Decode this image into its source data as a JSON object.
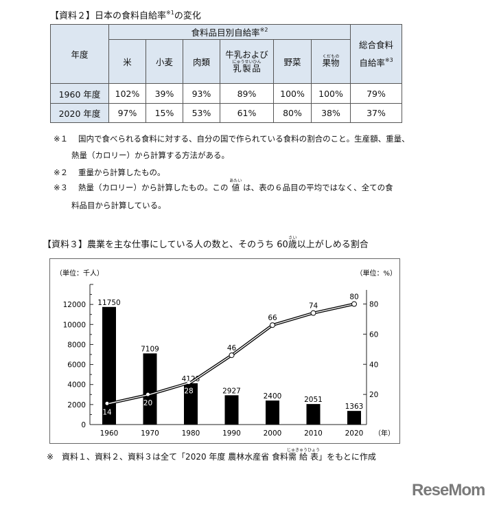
{
  "doc2": {
    "title": "【資料２】日本の食料自給率",
    "title_sup": "※1",
    "title_tail": "の変化"
  },
  "table": {
    "year_header": "年度",
    "group_header": "食料品目別自給率",
    "group_sup": "※2",
    "total_header_1": "総合食料",
    "total_header_2": "自給率",
    "total_sup": "※3",
    "items": [
      {
        "label": "米"
      },
      {
        "label": "小麦"
      },
      {
        "label": "肉類"
      },
      {
        "label": "牛乳および",
        "label2": "乳製品",
        "ruby": "にゅうせいひん"
      },
      {
        "label": "野菜"
      },
      {
        "label": "果物",
        "ruby": "くだもの"
      }
    ],
    "rows": [
      {
        "year": "1960 年度",
        "values": [
          "102%",
          "39%",
          "93%",
          "89%",
          "100%",
          "100%",
          "79%"
        ]
      },
      {
        "year": "2020 年度",
        "values": [
          "97%",
          "15%",
          "53%",
          "61%",
          "80%",
          "38%",
          "37%"
        ]
      }
    ]
  },
  "notes": [
    {
      "mark": "※１",
      "text": "国内で食べられる食料に対する、自分の国で作られている食料の割合のこと。生産額、重量、",
      "text2": "熱量（カロリー）から計算する方法がある。"
    },
    {
      "mark": "※２",
      "text": "重量から計算したもの。"
    },
    {
      "mark": "※３",
      "text_a": "熱量（カロリー）から計算したもの。この",
      "ruby_base": "値",
      "ruby": "あたい",
      "text_b": "は、表の６品目の平均ではなく、全ての食",
      "text2": "料品目から計算している。"
    }
  ],
  "doc3": {
    "title_a": "【資料３】農業を主な仕事にしている人の数と、そのうち 60",
    "ruby_base": "歳",
    "ruby": "さい",
    "title_b": "以上がしめる割合"
  },
  "chart_data": {
    "type": "bar+line",
    "categories": [
      "1960",
      "1970",
      "1980",
      "1990",
      "2000",
      "2010",
      "2020"
    ],
    "left_unit": "（単位：千人）",
    "right_unit": "（単位：%）",
    "x_unit": "（年）",
    "left_ticks": [
      "0",
      "2000",
      "4000",
      "6000",
      "8000",
      "10000",
      "12000"
    ],
    "right_ticks": [
      "20",
      "40",
      "60",
      "80"
    ],
    "ylim_left": [
      0,
      14000
    ],
    "ylim_right": [
      0,
      93
    ],
    "bars": {
      "values": [
        11750,
        7109,
        4128,
        2927,
        2400,
        2051,
        1363
      ],
      "color": "#000000"
    },
    "line": {
      "values": [
        14,
        20,
        28,
        46,
        66,
        74,
        80
      ]
    }
  },
  "footer": {
    "text_a": "※　資料１、資料２、資料３は全て「2020 年度 農林水産省 食料",
    "ruby_base": "需給表",
    "ruby": "じゅきゅうひょう",
    "text_b": "」をもとに作成"
  },
  "logo": "ReseMom"
}
